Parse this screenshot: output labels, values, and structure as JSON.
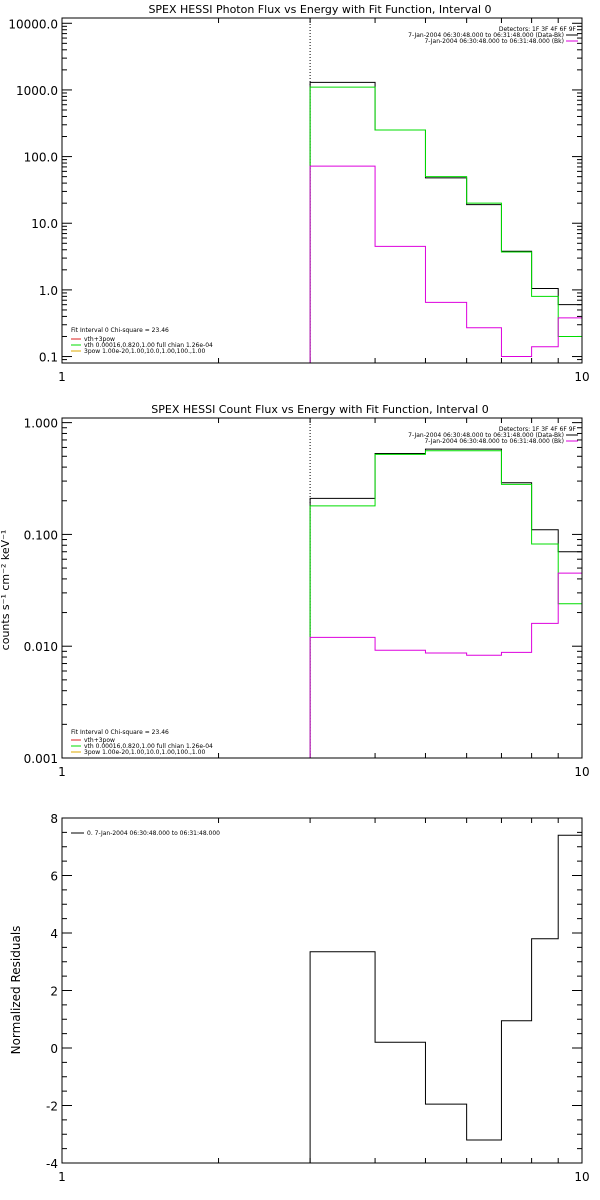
{
  "chart_data": [
    {
      "type": "line",
      "title": "SPEX HESSI Photon Flux vs Energy with Fit Function, Interval 0",
      "xlabel": "",
      "ylabel": "",
      "xscale": "log",
      "yscale": "log",
      "xlim": [
        1,
        10
      ],
      "ylim": [
        0.08,
        12000
      ],
      "xticks": [
        {
          "value": 1,
          "label": "1"
        },
        {
          "value": 10,
          "label": "10"
        }
      ],
      "yticks": [
        {
          "value": 0.1,
          "label": "0.1"
        },
        {
          "value": 1,
          "label": "1.0"
        },
        {
          "value": 10,
          "label": "10.0"
        },
        {
          "value": 100,
          "label": "100.0"
        },
        {
          "value": 1000,
          "label": "1000.0"
        },
        {
          "value": 10000,
          "label": "10000.0"
        }
      ],
      "vline": 3.0,
      "legend_top": [
        "Detectors: 1F 3F 4F 6F 9F",
        "7-Jan-2004 06:30:48.000 to 06:31:48.000 (Data-Bk)",
        "7-Jan-2004 06:30:48.000 to 06:31:48.000 (Bk)"
      ],
      "legend_bottom": [
        "Fit Interval 0   Chi-square = 23.46",
        "vth+3pow",
        "vth 0.00016,0.820,1.00  full chian 1.26e-04",
        "3pow 1.00e-20,1.00,10.0,1.00,100.,1.00"
      ],
      "series": [
        {
          "color": "#000000",
          "edges": [
            3.0,
            4.0,
            5.0,
            6.0,
            7.0,
            8.0,
            9.0,
            10.0
          ],
          "values": [
            1300,
            250,
            48,
            19,
            3.8,
            1.05,
            0.6
          ]
        },
        {
          "color": "#00dd00",
          "edges": [
            3.0,
            4.0,
            5.0,
            6.0,
            7.0,
            8.0,
            9.0,
            10.0
          ],
          "values": [
            1100,
            250,
            50,
            20,
            3.7,
            0.8,
            0.2
          ]
        },
        {
          "color": "#dd00dd",
          "edges": [
            3.0,
            4.0,
            5.0,
            6.0,
            7.0,
            8.0,
            9.0,
            10.0
          ],
          "values": [
            72,
            4.5,
            0.65,
            0.27,
            0.1,
            0.14,
            0.38
          ]
        }
      ]
    },
    {
      "type": "line",
      "title": "SPEX HESSI Count Flux vs Energy with Fit Function, Interval 0",
      "xlabel": "",
      "ylabel": "counts s⁻¹ cm⁻² keV⁻¹",
      "xscale": "log",
      "yscale": "log",
      "xlim": [
        1,
        10
      ],
      "ylim": [
        0.001,
        1.1
      ],
      "xticks": [
        {
          "value": 1,
          "label": "1"
        },
        {
          "value": 10,
          "label": "10"
        }
      ],
      "yticks": [
        {
          "value": 0.001,
          "label": "0.001"
        },
        {
          "value": 0.01,
          "label": "0.010"
        },
        {
          "value": 0.1,
          "label": "0.100"
        },
        {
          "value": 1,
          "label": "1.000"
        }
      ],
      "vline": 3.0,
      "legend_top": [
        "Detectors: 1F 3F 4F 6F 9F",
        "7-Jan-2004 06:30:48.000 to 06:31:48.000 (Data-Bk)",
        "7-Jan-2004 06:30:48.000 to 06:31:48.000 (Bk)"
      ],
      "legend_bottom": [
        "Fit Interval 0   Chi-square = 23.46",
        "vth+3pow",
        "vth 0.00016,0.820,1.00  full chian 1.26e-04",
        "3pow 1.00e-20,1.00,10.0,1.00,100.,1.00"
      ],
      "series": [
        {
          "color": "#000000",
          "edges": [
            3.0,
            4.0,
            5.0,
            6.0,
            7.0,
            8.0,
            9.0,
            10.0
          ],
          "values": [
            0.21,
            0.53,
            0.58,
            0.58,
            0.29,
            0.11,
            0.07
          ]
        },
        {
          "color": "#00dd00",
          "edges": [
            3.0,
            4.0,
            5.0,
            6.0,
            7.0,
            8.0,
            9.0,
            10.0
          ],
          "values": [
            0.18,
            0.52,
            0.56,
            0.56,
            0.28,
            0.082,
            0.024
          ]
        },
        {
          "color": "#dd00dd",
          "edges": [
            3.0,
            4.0,
            5.0,
            6.0,
            7.0,
            8.0,
            9.0,
            10.0
          ],
          "values": [
            0.012,
            0.0092,
            0.0087,
            0.0083,
            0.0088,
            0.016,
            0.045
          ]
        }
      ]
    },
    {
      "type": "line",
      "title": "",
      "xlabel": "",
      "ylabel": "Normalized Residuals",
      "xscale": "log",
      "yscale": "linear",
      "xlim": [
        1,
        10
      ],
      "ylim": [
        -4,
        8
      ],
      "xticks": [
        {
          "value": 1,
          "label": "1"
        },
        {
          "value": 10,
          "label": "10"
        }
      ],
      "yticks": [
        {
          "value": -4,
          "label": "-4"
        },
        {
          "value": -2,
          "label": "-2"
        },
        {
          "value": 0,
          "label": "0"
        },
        {
          "value": 2,
          "label": "2"
        },
        {
          "value": 4,
          "label": "4"
        },
        {
          "value": 6,
          "label": "6"
        },
        {
          "value": 8,
          "label": "8"
        }
      ],
      "legend_top": [
        "0.  7-Jan-2004 06:30:48.000 to 06:31:48.000"
      ],
      "series": [
        {
          "color": "#000000",
          "edges": [
            3.0,
            4.0,
            5.0,
            6.0,
            7.0,
            8.0,
            9.0,
            10.0
          ],
          "values": [
            3.35,
            0.2,
            -1.95,
            -3.2,
            0.95,
            3.8,
            7.4
          ]
        }
      ]
    }
  ]
}
